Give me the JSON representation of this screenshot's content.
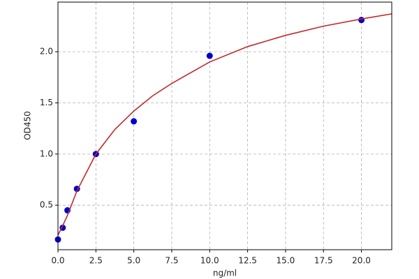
{
  "chart_data": {
    "type": "scatter",
    "xlabel": "ng/ml",
    "ylabel": "OD450",
    "xlim": [
      0,
      22
    ],
    "ylim": [
      0.065,
      2.485
    ],
    "xticks": [
      {
        "value": 0,
        "label": "0.0"
      },
      2.5,
      {
        "value": 5,
        "label": "5.0"
      },
      7.5,
      {
        "value": 10,
        "label": "10.0"
      },
      12.5,
      {
        "value": 15,
        "label": "15.0"
      },
      17.5,
      {
        "value": 20,
        "label": "20.0"
      }
    ],
    "yticks": [
      0.5,
      {
        "value": 1,
        "label": "1.0"
      },
      1.5,
      {
        "value": 2,
        "label": "2.0"
      }
    ],
    "grid": true,
    "series": [
      {
        "kind": "points",
        "color": "#0000cc",
        "x": [
          0,
          0.3125,
          0.625,
          1.25,
          2.5,
          5,
          10,
          20
        ],
        "values": [
          0.165,
          0.28,
          0.45,
          0.66,
          1.0,
          1.32,
          1.96,
          2.31
        ]
      },
      {
        "kind": "line",
        "color": "#c0282d",
        "x": [
          0,
          0.3125,
          0.625,
          1.25,
          2.5,
          3.75,
          5,
          6.25,
          7.5,
          10,
          12.5,
          15,
          17.5,
          20,
          22
        ],
        "values": [
          0.207,
          0.3,
          0.4,
          0.64,
          1.0,
          1.24,
          1.42,
          1.57,
          1.69,
          1.9,
          2.05,
          2.16,
          2.25,
          2.32,
          2.37
        ]
      }
    ]
  }
}
